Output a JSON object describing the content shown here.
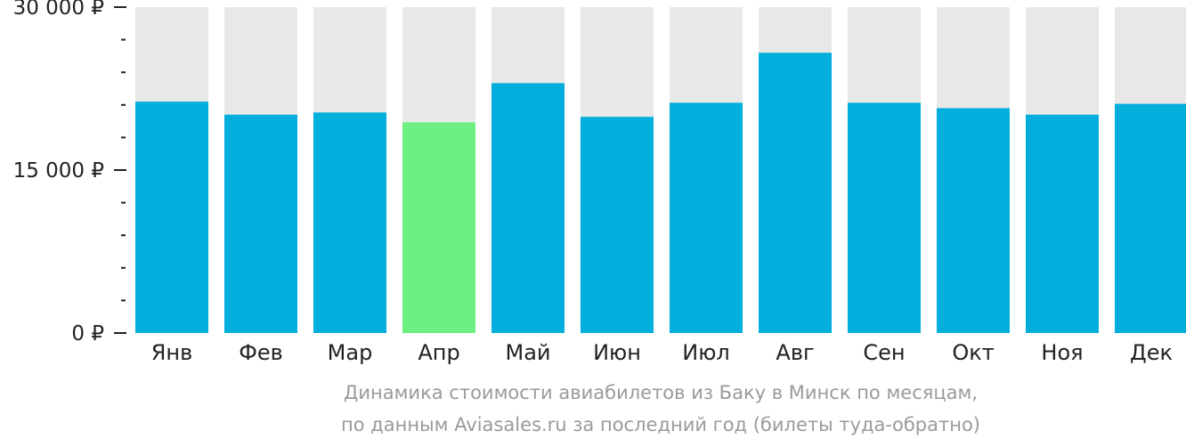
{
  "chart_data": {
    "type": "bar",
    "categories": [
      "Янв",
      "Фев",
      "Мар",
      "Апр",
      "Май",
      "Июн",
      "Июл",
      "Авг",
      "Сен",
      "Окт",
      "Ноя",
      "Дек"
    ],
    "values": [
      21300,
      20100,
      20300,
      19400,
      23000,
      19900,
      21200,
      25800,
      21200,
      20700,
      20100,
      21100
    ],
    "highlight_index": 3,
    "ylim": [
      0,
      30000
    ],
    "ytick_labels": [
      {
        "value": 0,
        "label": "0 ₽"
      },
      {
        "value": 15000,
        "label": "15 000 ₽"
      },
      {
        "value": 30000,
        "label": "30 000 ₽"
      }
    ],
    "minor_tick_step": 3000,
    "colors": {
      "bar": "#02afdc",
      "highlight": "#6cf081",
      "background_bar": "#e8e8e8",
      "axis_text": "#222222",
      "caption": "#9a9a9a"
    },
    "caption_line1": "Динамика стоимости авиабилетов из Баку в Минск по месяцам,",
    "caption_line2": "по данным Aviasales.ru за последний год (билеты туда-обратно)"
  }
}
